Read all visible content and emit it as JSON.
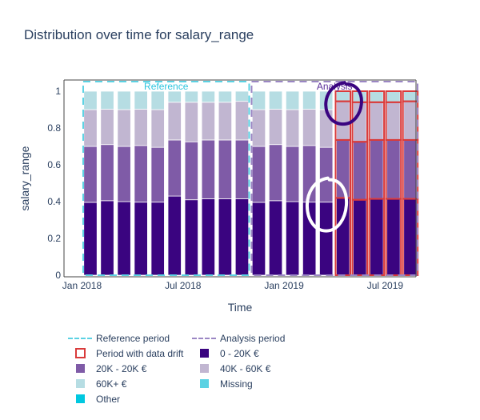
{
  "chart_data": {
    "type": "bar",
    "stacked": true,
    "title": "Distribution over time for salary_range",
    "xlabel": "Time",
    "ylabel": "salary_range",
    "ylim": [
      0,
      1.05
    ],
    "yticks": [
      "0",
      "0.2",
      "0.4",
      "0.6",
      "0.8",
      "1"
    ],
    "ytick_values": [
      0,
      0.2,
      0.4,
      0.6,
      0.8,
      1
    ],
    "xticks": [
      {
        "label": "Jan 2018",
        "index": 0
      },
      {
        "label": "Jul 2018",
        "index": 6
      },
      {
        "label": "Jan 2019",
        "index": 12
      },
      {
        "label": "Jul 2019",
        "index": 18
      }
    ],
    "categories": [
      "2018-01",
      "2018-02",
      "2018-03",
      "2018-04",
      "2018-05",
      "2018-06",
      "2018-07",
      "2018-08",
      "2018-09",
      "2018-10",
      "2018-11",
      "2018-12",
      "2019-01",
      "2019-02",
      "2019-03",
      "2019-04",
      "2019-05",
      "2019-06",
      "2019-07",
      "2019-08"
    ],
    "series": [
      {
        "name": "0 - 20K €",
        "color": "#3a0480",
        "values": [
          0.396,
          0.405,
          0.4,
          0.397,
          0.397,
          0.43,
          0.41,
          0.415,
          0.415,
          0.415,
          0.396,
          0.405,
          0.4,
          0.397,
          0.397,
          0.42,
          0.41,
          0.415,
          0.415,
          0.415
        ]
      },
      {
        "name": "20K - 20K €",
        "color": "#7f5ba7",
        "values": [
          0.304,
          0.305,
          0.3,
          0.308,
          0.298,
          0.305,
          0.315,
          0.32,
          0.32,
          0.32,
          0.304,
          0.305,
          0.3,
          0.308,
          0.298,
          0.315,
          0.315,
          0.32,
          0.32,
          0.32
        ]
      },
      {
        "name": "40K - 60K €",
        "color": "#c1b6d1",
        "values": [
          0.2,
          0.192,
          0.2,
          0.197,
          0.205,
          0.205,
          0.215,
          0.205,
          0.205,
          0.21,
          0.2,
          0.192,
          0.2,
          0.197,
          0.205,
          0.21,
          0.215,
          0.205,
          0.205,
          0.21
        ]
      },
      {
        "name": "60K+ €",
        "color": "#b6dde3",
        "values": [
          0.1,
          0.098,
          0.1,
          0.098,
          0.1,
          0.06,
          0.06,
          0.06,
          0.06,
          0.055,
          0.1,
          0.098,
          0.1,
          0.098,
          0.1,
          0.055,
          0.06,
          0.06,
          0.06,
          0.055
        ]
      },
      {
        "name": "Missing",
        "color": "#5bd2e3",
        "values": [
          0,
          0,
          0,
          0,
          0,
          0,
          0,
          0,
          0,
          0,
          0,
          0,
          0,
          0,
          0,
          0,
          0,
          0,
          0,
          0
        ]
      },
      {
        "name": "Other",
        "color": "#00c8e0",
        "values": [
          0,
          0,
          0,
          0,
          0,
          0,
          0,
          0,
          0,
          0,
          0,
          0,
          0,
          0,
          0,
          0,
          0,
          0,
          0,
          0
        ]
      }
    ],
    "periods": [
      {
        "name": "Reference",
        "legend": "Reference period",
        "start_index": 0,
        "end_index": 9,
        "color": "#5bd2e3"
      },
      {
        "name": "Analysis",
        "legend": "Analysis period",
        "start_index": 10,
        "end_index": 19,
        "color": "#9b87c4"
      }
    ],
    "drift_indices": [
      15,
      16,
      17,
      18,
      19
    ],
    "drift_legend": "Period with data drift",
    "drift_color": "#d93b3b",
    "legend_placement": "bottom-left",
    "annotations": [
      {
        "type": "freehand-circle",
        "color": "#3a0480",
        "near_index": 15,
        "near_value": 0.93
      },
      {
        "type": "freehand-circle",
        "color": "#ffffff",
        "near_index": 14,
        "near_value": 0.38
      }
    ]
  },
  "legend": [
    {
      "label": "Reference period",
      "kind": "dash",
      "color": "#5bd2e3"
    },
    {
      "label": "Analysis period",
      "kind": "dash",
      "color": "#9b87c4"
    },
    {
      "label": "Period with data drift",
      "kind": "outline",
      "color": "#d93b3b"
    },
    {
      "label": "0 - 20K €",
      "kind": "swatch",
      "color": "#3a0480"
    },
    {
      "label": "20K - 20K €",
      "kind": "swatch",
      "color": "#7f5ba7"
    },
    {
      "label": "40K - 60K €",
      "kind": "swatch",
      "color": "#c1b6d1"
    },
    {
      "label": "60K+ €",
      "kind": "swatch",
      "color": "#b6dde3"
    },
    {
      "label": "Missing",
      "kind": "swatch",
      "color": "#5bd2e3"
    },
    {
      "label": "Other",
      "kind": "swatch",
      "color": "#00c8e0"
    }
  ]
}
